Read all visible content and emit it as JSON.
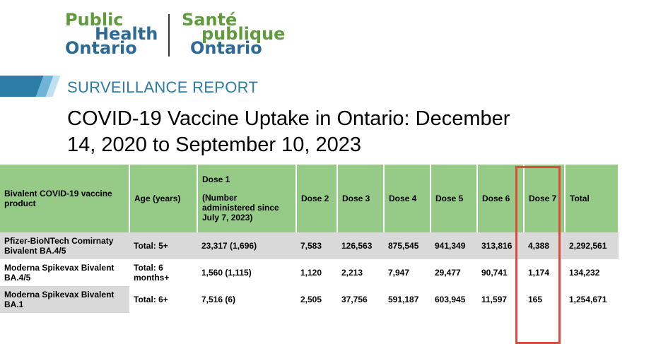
{
  "logo": {
    "en_line1": "Public",
    "en_line2": "Health",
    "en_line3": "Ontario",
    "fr_line1": "Santé",
    "fr_line2": "publique",
    "fr_line3": "Ontario"
  },
  "report_type": "SURVEILLANCE REPORT",
  "title": "COVID-19 Vaccine Uptake in Ontario: December 14, 2020 to September 10, 2023",
  "table": {
    "headers": {
      "product": "Bivalent COVID-19 vaccine product",
      "age": "Age (years)",
      "dose1": "Dose 1",
      "dose1_note": "(Number administered since July 7, 2023)",
      "dose2": "Dose 2",
      "dose3": "Dose 3",
      "dose4": "Dose 4",
      "dose5": "Dose 5",
      "dose6": "Dose 6",
      "dose7": "Dose 7",
      "total": "Total"
    },
    "rows": [
      {
        "product": "Pfizer-BioNTech Comirnaty Bivalent BA.4/5",
        "age": "Total: 5+",
        "dose1": "23,317 (1,696)",
        "dose2": "7,583",
        "dose3": "126,563",
        "dose4": "875,545",
        "dose5": "941,349",
        "dose6": "313,816",
        "dose7": "4,388",
        "total": "2,292,561"
      },
      {
        "product": "Moderna Spikevax Bivalent BA.4/5",
        "age": "Total: 6 months+",
        "dose1": "1,560 (1,115)",
        "dose2": "1,120",
        "dose3": "2,213",
        "dose4": "7,947",
        "dose5": "29,477",
        "dose6": "90,741",
        "dose7": "1,174",
        "total": "134,232"
      },
      {
        "product": "Moderna Spikevax Bivalent BA.1",
        "age": "Total: 6+",
        "dose1": "7,516 (6)",
        "dose2": "2,505",
        "dose3": "37,756",
        "dose4": "591,187",
        "dose5": "603,945",
        "dose6": "11,597",
        "dose7": "165",
        "total": "1,254,671"
      }
    ]
  },
  "colors": {
    "header_green": "#95ca87",
    "row_grey": "#d9d9d9",
    "accent_blue": "#2b7ca6",
    "highlight_red": "#e04a3c"
  }
}
